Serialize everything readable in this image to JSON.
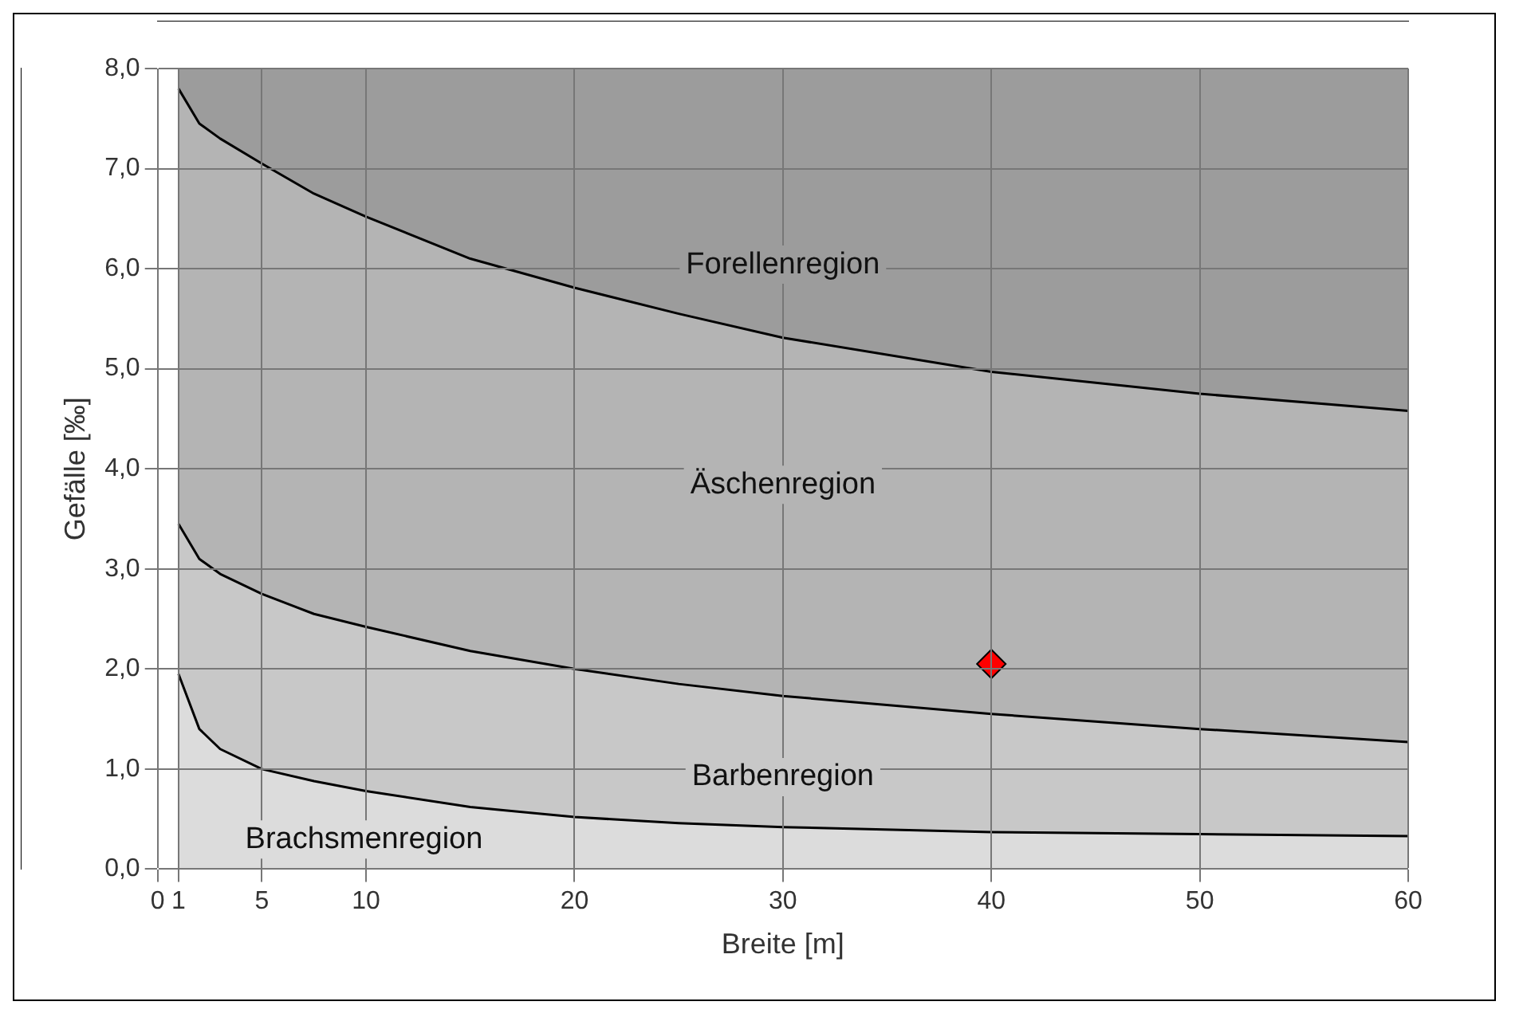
{
  "chart_data": {
    "type": "area",
    "xlabel": "Breite [m]",
    "ylabel": "Gefälle [‰]",
    "xlim": [
      0,
      60
    ],
    "xticks": [
      0,
      1,
      5,
      10,
      20,
      30,
      40,
      50,
      60
    ],
    "ylim": [
      0,
      8
    ],
    "yticks": [
      {
        "value": 0,
        "label": "0,0"
      },
      {
        "value": 1,
        "label": "1,0"
      },
      {
        "value": 2,
        "label": "2,0"
      },
      {
        "value": 3,
        "label": "3,0"
      },
      {
        "value": 4,
        "label": "4,0"
      },
      {
        "value": 5,
        "label": "5,0"
      },
      {
        "value": 6,
        "label": "6,0"
      },
      {
        "value": 7,
        "label": "7,0"
      },
      {
        "value": 8,
        "label": "8,0"
      }
    ],
    "grid": true,
    "legend": false,
    "series": [
      {
        "x": [
          1,
          2,
          3,
          5,
          7.5,
          10,
          15,
          20,
          25,
          30,
          40,
          50,
          60
        ],
        "values": [
          7.8,
          7.45,
          7.3,
          7.05,
          6.75,
          6.52,
          6.1,
          5.81,
          5.55,
          5.31,
          4.97,
          4.75,
          4.58
        ],
        "color": "#b4b4b4"
      },
      {
        "x": [
          1,
          2,
          3,
          5,
          7.5,
          10,
          15,
          20,
          25,
          30,
          40,
          50,
          60
        ],
        "values": [
          3.45,
          3.1,
          2.95,
          2.75,
          2.55,
          2.42,
          2.18,
          2.0,
          1.85,
          1.73,
          1.55,
          1.4,
          1.27
        ],
        "color": "#c8c8c8"
      },
      {
        "x": [
          1,
          2,
          3,
          5,
          7.5,
          10,
          15,
          20,
          25,
          30,
          40,
          50,
          60
        ],
        "values": [
          1.95,
          1.4,
          1.2,
          1.0,
          0.88,
          0.78,
          0.62,
          0.52,
          0.46,
          0.42,
          0.37,
          0.35,
          0.33
        ],
        "color": "#dcdcdc"
      },
      {
        "type": "scatter",
        "x": [
          40
        ],
        "values": [
          2.05
        ],
        "color": "#ff0000",
        "marker": "diamond"
      }
    ],
    "annotations": [
      "Forellenregion",
      "Äschenregion",
      "Barbenregion",
      "Brachsmenregion"
    ]
  }
}
